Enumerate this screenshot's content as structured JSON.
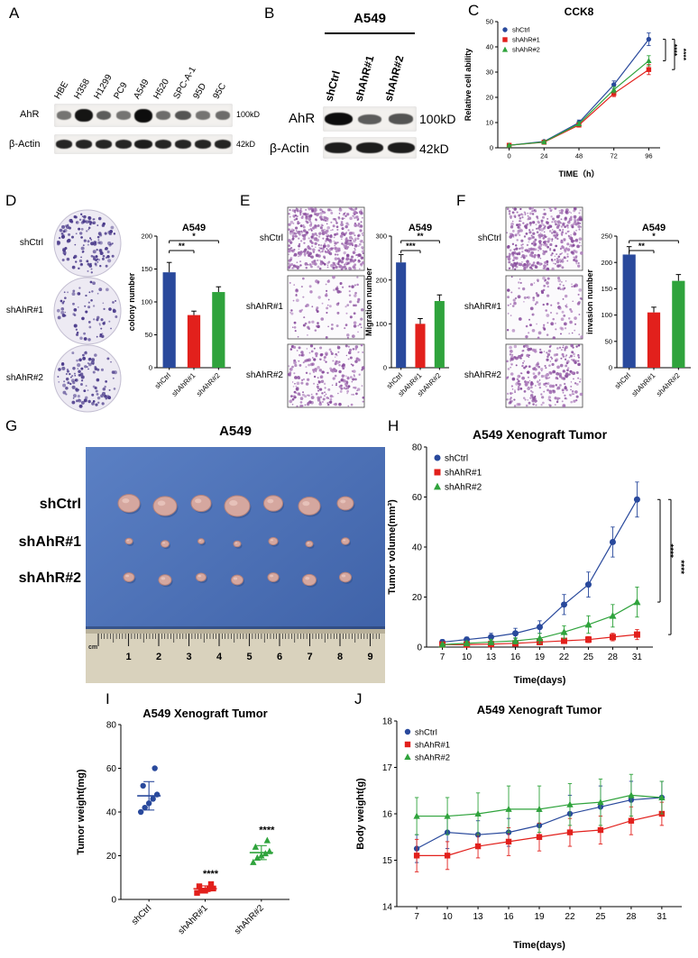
{
  "colors": {
    "shCtrl": "#29499c",
    "shAhR1": "#e2201c",
    "shAhR2": "#2fa33c"
  },
  "panelA": {
    "label": "A",
    "lanes": [
      "HBE",
      "H358",
      "H1299",
      "PC9",
      "A549",
      "H520",
      "SPC-A-1",
      "95D",
      "95C"
    ],
    "ahr_intensities": [
      0.35,
      0.95,
      0.5,
      0.35,
      1,
      0.4,
      0.55,
      0.35,
      0.4
    ],
    "actin_intensities": [
      0.85,
      0.85,
      0.85,
      0.85,
      0.9,
      0.85,
      0.85,
      0.85,
      0.85
    ],
    "rows": [
      {
        "name": "AhR",
        "size": "100kD"
      },
      {
        "name": "β-Actin",
        "size": "42kD"
      }
    ]
  },
  "panelB": {
    "label": "B",
    "title": "A549",
    "lanes": [
      "shCtrl",
      "shAhR#1",
      "shAhR#2"
    ],
    "ahr_intensities": [
      1,
      0.5,
      0.55
    ],
    "actin_intensities": [
      0.9,
      0.9,
      0.9
    ],
    "rows": [
      {
        "name": "AhR",
        "size": "100kD"
      },
      {
        "name": "β-Actin",
        "size": "42kD"
      }
    ]
  },
  "panelC": {
    "label": "C"
  },
  "panelD": {
    "label": "D",
    "labels": [
      "shCtrl",
      "shAhR#1",
      "shAhR#2"
    ],
    "colony_densities": [
      140,
      72,
      108
    ]
  },
  "panelE": {
    "label": "E",
    "labels": [
      "shCtrl",
      "shAhR#1",
      "shAhR#2"
    ],
    "cell_densities": [
      520,
      110,
      260
    ]
  },
  "panelF": {
    "label": "F",
    "labels": [
      "shCtrl",
      "shAhR#1",
      "shAhR#2"
    ],
    "cell_densities": [
      430,
      130,
      300
    ]
  },
  "panelG": {
    "label": "G",
    "title": "A549",
    "row_labels": [
      "shCtrl",
      "shAhR#1",
      "shAhR#2"
    ],
    "tumor_rows": [
      {
        "name": "shCtrl",
        "sizes": [
          24,
          26,
          22,
          28,
          21,
          24,
          18
        ]
      },
      {
        "name": "shAhR#1",
        "sizes": [
          8,
          9,
          7,
          8,
          10,
          8,
          9
        ]
      },
      {
        "name": "shAhR#2",
        "sizes": [
          12,
          14,
          11,
          13,
          12,
          15,
          13
        ]
      }
    ],
    "ruler_numbers": [
      "1",
      "2",
      "3",
      "4",
      "5",
      "6",
      "7",
      "8",
      "9"
    ],
    "ruler_unit": "cm"
  },
  "panelH": {
    "label": "H"
  },
  "panelI": {
    "label": "I"
  },
  "panelJ": {
    "label": "J"
  },
  "chart_data": [
    {
      "id": "C",
      "type": "line",
      "title": "CCK8",
      "xlabel": "TIME（h）",
      "ylabel": "Relative cell ability",
      "x": [
        0,
        24,
        48,
        72,
        96
      ],
      "ylim": [
        0,
        50
      ],
      "yticks": [
        0,
        10,
        20,
        30,
        40,
        50
      ],
      "legend_position": "top-left",
      "series": [
        {
          "name": "shCtrl",
          "marker": "circle",
          "color": "#29499c",
          "values": [
            1,
            2.5,
            10,
            25,
            43
          ],
          "errors": [
            0.2,
            0.3,
            1,
            1.5,
            2.5
          ]
        },
        {
          "name": "shAhR#1",
          "marker": "square",
          "color": "#e2201c",
          "values": [
            1,
            2.2,
            9,
            21.5,
            31
          ],
          "errors": [
            0.2,
            0.3,
            0.8,
            1.2,
            2
          ]
        },
        {
          "name": "shAhR#2",
          "marker": "triangle",
          "color": "#2fa33c",
          "values": [
            1,
            2.3,
            9.5,
            23,
            34.5
          ],
          "errors": [
            0.2,
            0.3,
            0.8,
            1.2,
            2
          ]
        }
      ],
      "significance": [
        "****",
        "****"
      ]
    },
    {
      "id": "D",
      "type": "bar",
      "title": "A549",
      "ylabel": "colony number",
      "categories": [
        "shCtrl",
        "shAhR#1",
        "shAhR#2"
      ],
      "values": [
        145,
        80,
        115
      ],
      "errors": [
        15,
        6,
        8
      ],
      "colors": [
        "#29499c",
        "#e2201c",
        "#2fa33c"
      ],
      "ylim": [
        0,
        200
      ],
      "yticks": [
        0,
        50,
        100,
        150,
        200
      ],
      "significance": [
        {
          "from": 0,
          "to": 1,
          "stars": "**"
        },
        {
          "from": 0,
          "to": 2,
          "stars": "*"
        }
      ]
    },
    {
      "id": "E",
      "type": "bar",
      "title": "A549",
      "ylabel": "Migration number",
      "categories": [
        "shCtrl",
        "shAhR#1",
        "shAhR#2"
      ],
      "values": [
        240,
        100,
        152
      ],
      "errors": [
        18,
        12,
        14
      ],
      "colors": [
        "#29499c",
        "#e2201c",
        "#2fa33c"
      ],
      "ylim": [
        0,
        300
      ],
      "yticks": [
        0,
        100,
        200,
        300
      ],
      "significance": [
        {
          "from": 0,
          "to": 1,
          "stars": "***"
        },
        {
          "from": 0,
          "to": 2,
          "stars": "**"
        }
      ]
    },
    {
      "id": "F",
      "type": "bar",
      "title": "A549",
      "ylabel": "invasion number",
      "categories": [
        "shCtrl",
        "shAhR#1",
        "shAhR#2"
      ],
      "values": [
        215,
        105,
        165
      ],
      "errors": [
        15,
        10,
        12
      ],
      "colors": [
        "#29499c",
        "#e2201c",
        "#2fa33c"
      ],
      "ylim": [
        0,
        250
      ],
      "yticks": [
        0,
        50,
        100,
        150,
        200,
        250
      ],
      "significance": [
        {
          "from": 0,
          "to": 1,
          "stars": "**"
        },
        {
          "from": 0,
          "to": 2,
          "stars": "*"
        }
      ]
    },
    {
      "id": "H",
      "type": "line",
      "title": "A549 Xenograft Tumor",
      "xlabel": "Time(days)",
      "ylabel": "Tumor volume(mm³)",
      "x": [
        7,
        10,
        13,
        16,
        19,
        22,
        25,
        28,
        31
      ],
      "ylim": [
        0,
        80
      ],
      "yticks": [
        0,
        20,
        40,
        60,
        80
      ],
      "legend_position": "top-left",
      "series": [
        {
          "name": "shCtrl",
          "marker": "circle",
          "color": "#29499c",
          "values": [
            2,
            3,
            4,
            5.5,
            8,
            17,
            25,
            42,
            59
          ],
          "errors": [
            1,
            1,
            1.5,
            2,
            2.5,
            4,
            5,
            6,
            7
          ]
        },
        {
          "name": "shAhR#1",
          "marker": "square",
          "color": "#e2201c",
          "values": [
            1,
            1,
            1.2,
            1.5,
            2,
            2.5,
            3,
            4,
            5
          ],
          "errors": [
            0.5,
            0.5,
            0.6,
            0.8,
            1,
            1,
            1.2,
            1.5,
            2
          ]
        },
        {
          "name": "shAhR#2",
          "marker": "triangle",
          "color": "#2fa33c",
          "values": [
            1,
            1.5,
            2,
            2.5,
            3.5,
            6,
            9,
            12.5,
            18
          ],
          "errors": [
            0.5,
            0.8,
            1,
            1.2,
            2,
            2.5,
            3.5,
            4.5,
            6
          ]
        }
      ],
      "significance": [
        "****",
        "****"
      ]
    },
    {
      "id": "I",
      "type": "scatter",
      "title": "A549 Xenograft Tumor",
      "ylabel": "Tumor weight(mg)",
      "categories": [
        "shCtrl",
        "shAhR#1",
        "shAhR#2"
      ],
      "ylim": [
        0,
        80
      ],
      "yticks": [
        0,
        20,
        40,
        60,
        80
      ],
      "groups": [
        {
          "name": "shCtrl",
          "marker": "circle",
          "color": "#29499c",
          "points": [
            40,
            42,
            44,
            46,
            48,
            52,
            60
          ],
          "mean": 47.4,
          "sd": 6.5,
          "stars": ""
        },
        {
          "name": "shAhR#1",
          "marker": "square",
          "color": "#e2201c",
          "points": [
            3,
            4,
            4,
            5,
            5,
            6,
            7
          ],
          "mean": 4.9,
          "sd": 1.3,
          "stars": "****"
        },
        {
          "name": "shAhR#2",
          "marker": "triangle",
          "color": "#2fa33c",
          "points": [
            17,
            19,
            20,
            21,
            22,
            24,
            27
          ],
          "mean": 21.4,
          "sd": 3.2,
          "stars": "****"
        }
      ]
    },
    {
      "id": "J",
      "type": "line",
      "title": "A549 Xenograft Tumor",
      "xlabel": "Time(days)",
      "ylabel": "Body weight(g)",
      "x": [
        7,
        10,
        13,
        16,
        19,
        22,
        25,
        28,
        31
      ],
      "ylim": [
        14,
        18
      ],
      "yticks": [
        14,
        15,
        16,
        17,
        18
      ],
      "legend_position": "top-left",
      "series": [
        {
          "name": "shCtrl",
          "marker": "circle",
          "color": "#29499c",
          "values": [
            15.25,
            15.6,
            15.55,
            15.6,
            15.75,
            16.0,
            16.15,
            16.3,
            16.35
          ],
          "errors": [
            0.3,
            0.35,
            0.3,
            0.3,
            0.3,
            0.4,
            0.45,
            0.4,
            0.35
          ]
        },
        {
          "name": "shAhR#1",
          "marker": "square",
          "color": "#e2201c",
          "values": [
            15.1,
            15.1,
            15.3,
            15.4,
            15.5,
            15.6,
            15.65,
            15.85,
            16.0
          ],
          "errors": [
            0.35,
            0.3,
            0.25,
            0.3,
            0.3,
            0.3,
            0.3,
            0.3,
            0.25
          ]
        },
        {
          "name": "shAhR#2",
          "marker": "triangle",
          "color": "#2fa33c",
          "values": [
            15.95,
            15.95,
            16.0,
            16.1,
            16.1,
            16.2,
            16.25,
            16.4,
            16.35
          ],
          "errors": [
            0.4,
            0.4,
            0.45,
            0.5,
            0.5,
            0.45,
            0.5,
            0.45,
            0.35
          ]
        }
      ]
    }
  ]
}
